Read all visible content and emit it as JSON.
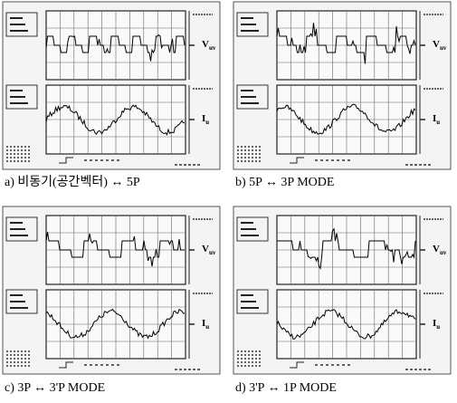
{
  "panels": [
    {
      "caption": "a) 비동기(공간벡터) ↔ 5P",
      "voltage_label": {
        "main": "V",
        "sub": "uv"
      },
      "current_label": {
        "main": "I",
        "sub": "u"
      }
    },
    {
      "caption": "b) 5P ↔ 3P   MODE",
      "voltage_label": {
        "main": "V",
        "sub": "uv"
      },
      "current_label": {
        "main": "I",
        "sub": "u"
      }
    },
    {
      "caption": "c) 3P ↔ 3'P   MODE",
      "voltage_label": {
        "main": "V",
        "sub": "uv"
      },
      "current_label": {
        "main": "I",
        "sub": "u"
      }
    },
    {
      "caption": "d) 3'P ↔ 1P   MODE",
      "voltage_label": {
        "main": "V",
        "sub": "uv"
      },
      "current_label": {
        "main": "I",
        "sub": "u"
      }
    }
  ]
}
